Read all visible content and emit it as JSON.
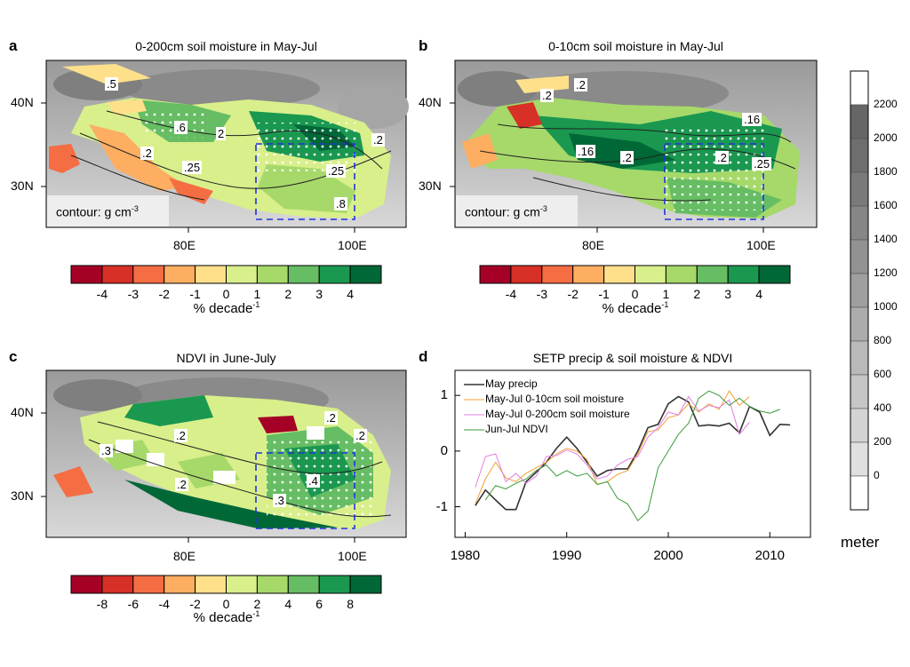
{
  "panels": {
    "a": {
      "letter": "a",
      "title": "0-200cm soil moisture in May-Jul",
      "contour_label": "contour: g cm",
      "contour_exp": "-3",
      "xticks": [
        "80E",
        "100E"
      ],
      "yticks": [
        "40N",
        "30N"
      ],
      "contour_values": [
        ".5",
        "2",
        ".6",
        ".25",
        ".25",
        ".2",
        ".2",
        ".8"
      ]
    },
    "b": {
      "letter": "b",
      "title": "0-10cm soil moisture in May-Jul",
      "contour_label": "contour: g cm",
      "contour_exp": "-3",
      "xticks": [
        "80E",
        "100E"
      ],
      "yticks": [
        "40N",
        "30N"
      ],
      "contour_values": [
        ".2",
        ".2",
        ".16",
        ".16",
        ".2",
        ".2",
        ".25"
      ]
    },
    "c": {
      "letter": "c",
      "title": "NDVI in June-July",
      "xticks": [
        "80E",
        "100E"
      ],
      "yticks": [
        "40N",
        "30N"
      ],
      "contour_values": [
        ".3",
        ".2",
        ".2",
        ".2",
        ".3",
        ".4",
        ".2"
      ]
    }
  },
  "colorbars": {
    "ab": {
      "ticks": [
        "-4",
        "-3",
        "-2",
        "-1",
        "0",
        "1",
        "2",
        "3",
        "4"
      ],
      "unit": "% decade",
      "unit_exp": "-1"
    },
    "c": {
      "ticks": [
        "-8",
        "-6",
        "-4",
        "-2",
        "0",
        "2",
        "4",
        "6",
        "8"
      ],
      "unit": "% decade",
      "unit_exp": "-1"
    },
    "colors": [
      "#a50026",
      "#d73027",
      "#f46d43",
      "#fdae61",
      "#fee08b",
      "#d9ef8b",
      "#a6d96a",
      "#66bd63",
      "#1a9850",
      "#006837"
    ],
    "elevation": {
      "ticks": [
        "2200",
        "2000",
        "1800",
        "1600",
        "1400",
        "1200",
        "1000",
        "800",
        "600",
        "400",
        "200",
        "0"
      ],
      "unit": "meter"
    }
  },
  "chart_data": {
    "type": "line",
    "title": "SETP precip & soil moisture & NDVI",
    "xlabel": "",
    "ylabel": "",
    "xlim": [
      1979,
      2014
    ],
    "ylim": [
      -1.55,
      1.45
    ],
    "xticks": [
      1980,
      1990,
      2000,
      2010
    ],
    "yticks": [
      1,
      0,
      -1
    ],
    "legend_position": "top-left",
    "series": [
      {
        "name": "May precip",
        "color": "#333333",
        "x": [
          1981,
          1982,
          1983,
          1984,
          1985,
          1986,
          1987,
          1988,
          1989,
          1990,
          1991,
          1992,
          1993,
          1994,
          1995,
          1996,
          1997,
          1998,
          1999,
          2000,
          2001,
          2002,
          2003,
          2004,
          2005,
          2006,
          2007,
          2008,
          2009,
          2010,
          2011,
          2012
        ],
        "y": [
          -0.98,
          -0.7,
          -0.88,
          -1.05,
          -1.05,
          -0.55,
          -0.38,
          -0.2,
          0.05,
          0.25,
          0.05,
          -0.2,
          -0.45,
          -0.35,
          -0.32,
          -0.32,
          0.0,
          0.42,
          0.48,
          0.85,
          0.98,
          0.88,
          0.45,
          0.47,
          0.45,
          0.5,
          0.33,
          0.8,
          0.7,
          0.28,
          0.48,
          0.47
        ]
      },
      {
        "name": "May-Jul 0-10cm soil moisture",
        "color": "#f0a030",
        "x": [
          1981,
          1982,
          1983,
          1984,
          1985,
          1986,
          1987,
          1988,
          1989,
          1990,
          1991,
          1992,
          1993,
          1994,
          1995,
          1996,
          1997,
          1998,
          1999,
          2000,
          2001,
          2002,
          2003,
          2004,
          2005,
          2006,
          2007,
          2008
        ],
        "y": [
          -0.95,
          -0.5,
          -0.2,
          -0.48,
          -0.55,
          -0.4,
          -0.3,
          -0.2,
          -0.05,
          0.05,
          0.0,
          -0.15,
          -0.6,
          -0.55,
          -0.42,
          -0.35,
          -0.05,
          0.35,
          0.38,
          0.6,
          0.65,
          0.85,
          0.7,
          0.85,
          0.75,
          1.08,
          0.82,
          0.98
        ]
      },
      {
        "name": "May-Jul 0-200cm soil moisture",
        "color": "#e080e0",
        "x": [
          1981,
          1982,
          1983,
          1984,
          1985,
          1986,
          1987,
          1988,
          1989,
          1990,
          1991,
          1992,
          1993,
          1994,
          1995,
          1996,
          1997,
          1998,
          1999,
          2000,
          2001,
          2002,
          2003,
          2004,
          2005,
          2006,
          2007,
          2008
        ],
        "y": [
          -0.65,
          -0.1,
          -0.05,
          -0.55,
          -0.4,
          -0.58,
          -0.45,
          -0.1,
          -0.08,
          0.02,
          -0.05,
          -0.25,
          -0.5,
          -0.45,
          -0.25,
          -0.15,
          -0.1,
          0.25,
          0.42,
          0.7,
          0.65,
          0.98,
          0.72,
          0.82,
          0.78,
          0.92,
          0.3,
          0.52
        ]
      },
      {
        "name": "Jun-Jul NDVI",
        "color": "#3a9a3a",
        "x": [
          1982,
          1983,
          1984,
          1985,
          1986,
          1987,
          1988,
          1989,
          1990,
          1991,
          1992,
          1993,
          1994,
          1995,
          1996,
          1997,
          1998,
          1999,
          2000,
          2001,
          2002,
          2003,
          2004,
          2005,
          2006,
          2007,
          2008,
          2009,
          2010,
          2011
        ],
        "y": [
          -0.88,
          -0.62,
          -0.68,
          -0.58,
          -0.5,
          -0.35,
          -0.25,
          -0.45,
          -0.35,
          -0.45,
          -0.4,
          -0.6,
          -0.55,
          -0.85,
          -0.95,
          -1.25,
          -1.08,
          -0.3,
          0.0,
          0.3,
          0.5,
          0.95,
          1.08,
          1.0,
          0.82,
          0.95,
          0.8,
          0.72,
          0.68,
          0.75
        ]
      }
    ]
  }
}
